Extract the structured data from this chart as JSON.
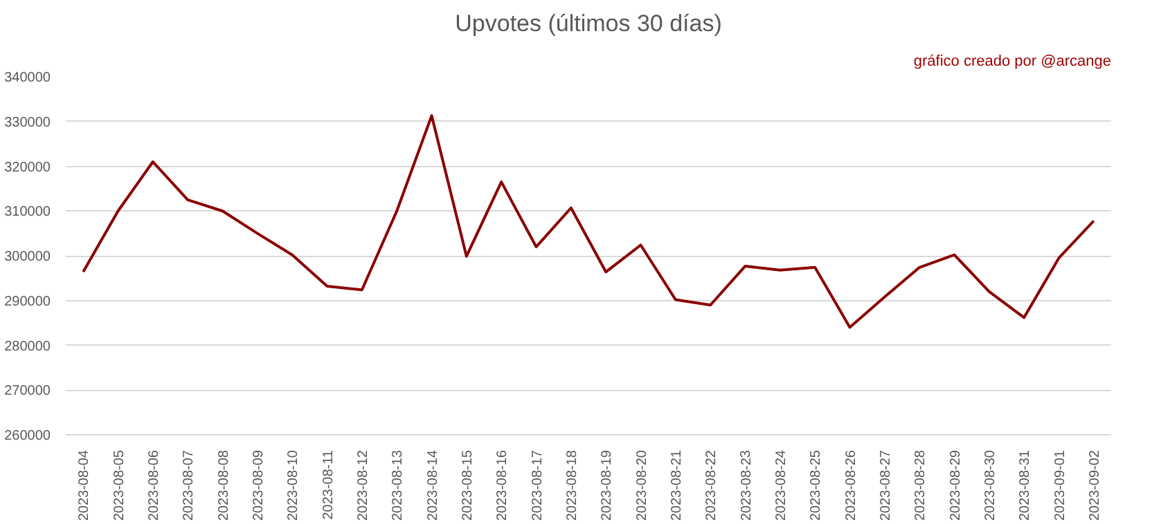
{
  "chart_data": {
    "type": "line",
    "title": "Upvotes (últimos 30 días)",
    "annotations": [
      "gráfico creado por @arcange"
    ],
    "categories": [
      "2023-08-04",
      "2023-08-05",
      "2023-08-06",
      "2023-08-07",
      "2023-08-08",
      "2023-08-09",
      "2023-08-10",
      "2023-08-11",
      "2023-08-12",
      "2023-08-13",
      "2023-08-14",
      "2023-08-15",
      "2023-08-16",
      "2023-08-17",
      "2023-08-18",
      "2023-08-19",
      "2023-08-20",
      "2023-08-21",
      "2023-08-22",
      "2023-08-23",
      "2023-08-24",
      "2023-08-25",
      "2023-08-26",
      "2023-08-27",
      "2023-08-28",
      "2023-08-29",
      "2023-08-30",
      "2023-08-31",
      "2023-09-01",
      "2023-09-02"
    ],
    "series": [
      {
        "color": "#8b0000",
        "values": [
          296400,
          310000,
          321000,
          312500,
          310000,
          305000,
          300200,
          293200,
          292400,
          310000,
          331300,
          299900,
          316500,
          302000,
          310700,
          296400,
          302400,
          290200,
          289000,
          297700,
          296800,
          297400,
          284000,
          290800,
          297400,
          300200,
          292000,
          286200,
          299500,
          307800
        ]
      }
    ],
    "ylim": [
      260000,
      340000
    ],
    "yticks": [
      260000,
      270000,
      280000,
      290000,
      300000,
      310000,
      320000,
      330000,
      340000
    ],
    "grid": "y",
    "marker": "none",
    "line_style": "solid"
  }
}
